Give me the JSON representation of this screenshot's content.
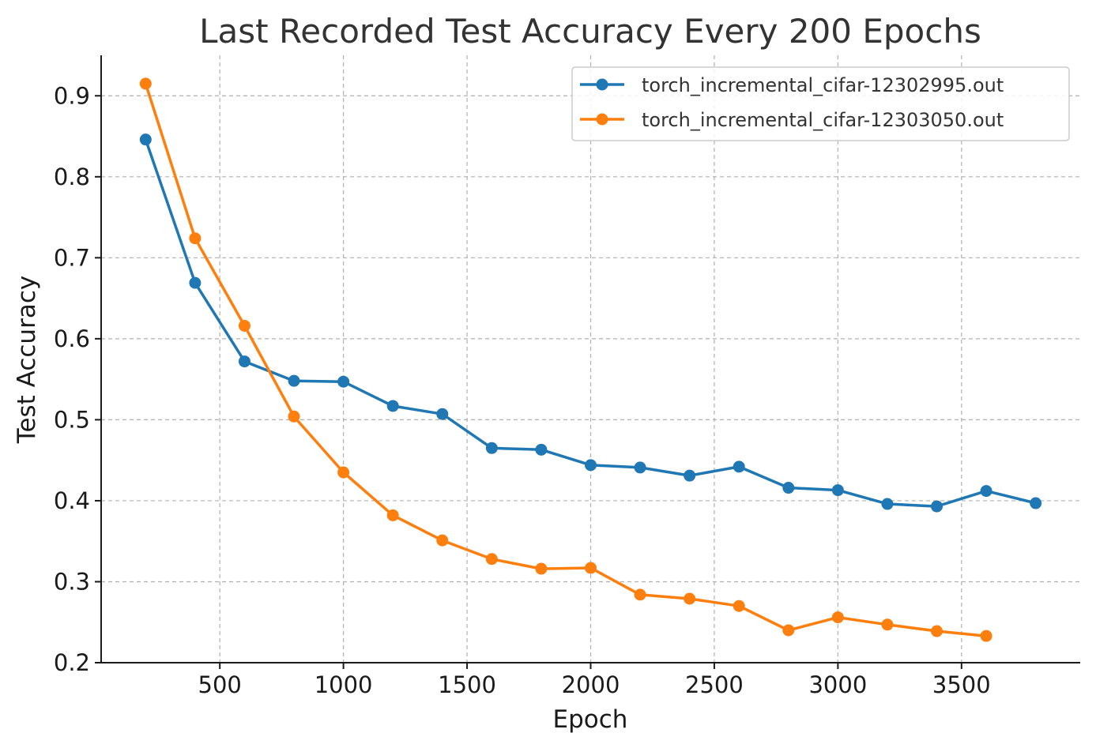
{
  "chart_data": {
    "type": "line",
    "title": "Last Recorded Test Accuracy Every 200 Epochs",
    "xlabel": "Epoch",
    "ylabel": "Test Accuracy",
    "xlim": [
      20,
      3980
    ],
    "ylim": [
      0.2,
      0.95
    ],
    "xticks": [
      500,
      1000,
      1500,
      2000,
      2500,
      3000,
      3500
    ],
    "xtick_labels": [
      "500",
      "1000",
      "1500",
      "2000",
      "2500",
      "3000",
      "3500"
    ],
    "yticks": [
      0.2,
      0.3,
      0.4,
      0.5,
      0.6,
      0.7,
      0.8,
      0.9
    ],
    "ytick_labels": [
      "0.2",
      "0.3",
      "0.4",
      "0.5",
      "0.6",
      "0.7",
      "0.8",
      "0.9"
    ],
    "grid": true,
    "legend_position": "top-right",
    "series": [
      {
        "name": "torch_incremental_cifar-12302995.out",
        "color": "#1f77b4",
        "x": [
          200,
          400,
          600,
          800,
          1000,
          1200,
          1400,
          1600,
          1800,
          2000,
          2200,
          2400,
          2600,
          2800,
          3000,
          3200,
          3400,
          3600,
          3800
        ],
        "y": [
          0.846,
          0.669,
          0.572,
          0.548,
          0.547,
          0.517,
          0.507,
          0.465,
          0.463,
          0.444,
          0.441,
          0.431,
          0.442,
          0.416,
          0.413,
          0.396,
          0.393,
          0.412,
          0.397
        ]
      },
      {
        "name": "torch_incremental_cifar-12303050.out",
        "color": "#ff7f0e",
        "x": [
          200,
          400,
          600,
          800,
          1000,
          1200,
          1400,
          1600,
          1800,
          2000,
          2200,
          2400,
          2600,
          2800,
          3000,
          3200,
          3400,
          3600
        ],
        "y": [
          0.915,
          0.724,
          0.616,
          0.504,
          0.435,
          0.382,
          0.351,
          0.328,
          0.316,
          0.317,
          0.284,
          0.279,
          0.27,
          0.24,
          0.256,
          0.247,
          0.239,
          0.233
        ]
      }
    ]
  }
}
